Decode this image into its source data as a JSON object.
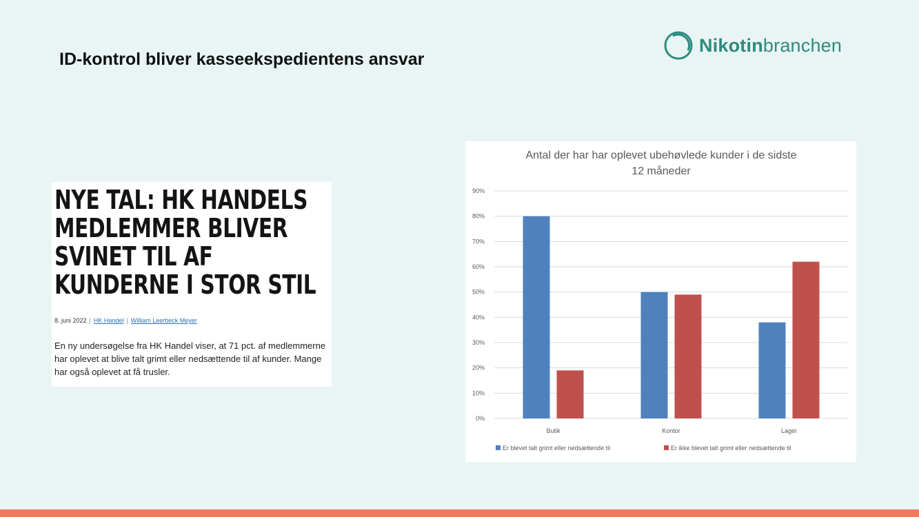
{
  "slide": {
    "title": "ID-kontrol bliver kasseekspedientens ansvar",
    "logo": {
      "bold": "Nikotin",
      "regular": "branchen",
      "color": "#2e8b7e"
    }
  },
  "article": {
    "headline": "NYE TAL: HK HANDELS MEDLEMMER BLIVER SVINET TIL AF KUNDERNE I STOR STIL",
    "date": "8. juni 2022",
    "category": "HK Handel",
    "author": "William Leerbeck Meyer",
    "body": "En ny undersøgelse fra HK Handel viser, at 71 pct. af medlemmerne har oplevet at blive talt grimt eller nedsættende til af kunder. Mange har også oplevet at få trusler."
  },
  "chart_data": {
    "type": "bar",
    "title_lines": [
      "Antal der har har oplevet ubehøvlede kunder i de sidste",
      "12 måneder"
    ],
    "categories": [
      "Butik",
      "Kontor",
      "Lager"
    ],
    "series": [
      {
        "name": "Er blevet talt grimt eller nedsættende til",
        "values": [
          80,
          50,
          38
        ],
        "color": "#4f81bd"
      },
      {
        "name": "Er ikke blevet talt grimt eller nedsættende til",
        "values": [
          19,
          49,
          62
        ],
        "color": "#c0504d"
      }
    ],
    "yticks": [
      "0%",
      "10%",
      "20%",
      "30%",
      "40%",
      "50%",
      "60%",
      "70%",
      "80%",
      "90%"
    ],
    "ylim": [
      0,
      90
    ],
    "grid": true,
    "legend": "bottom"
  }
}
